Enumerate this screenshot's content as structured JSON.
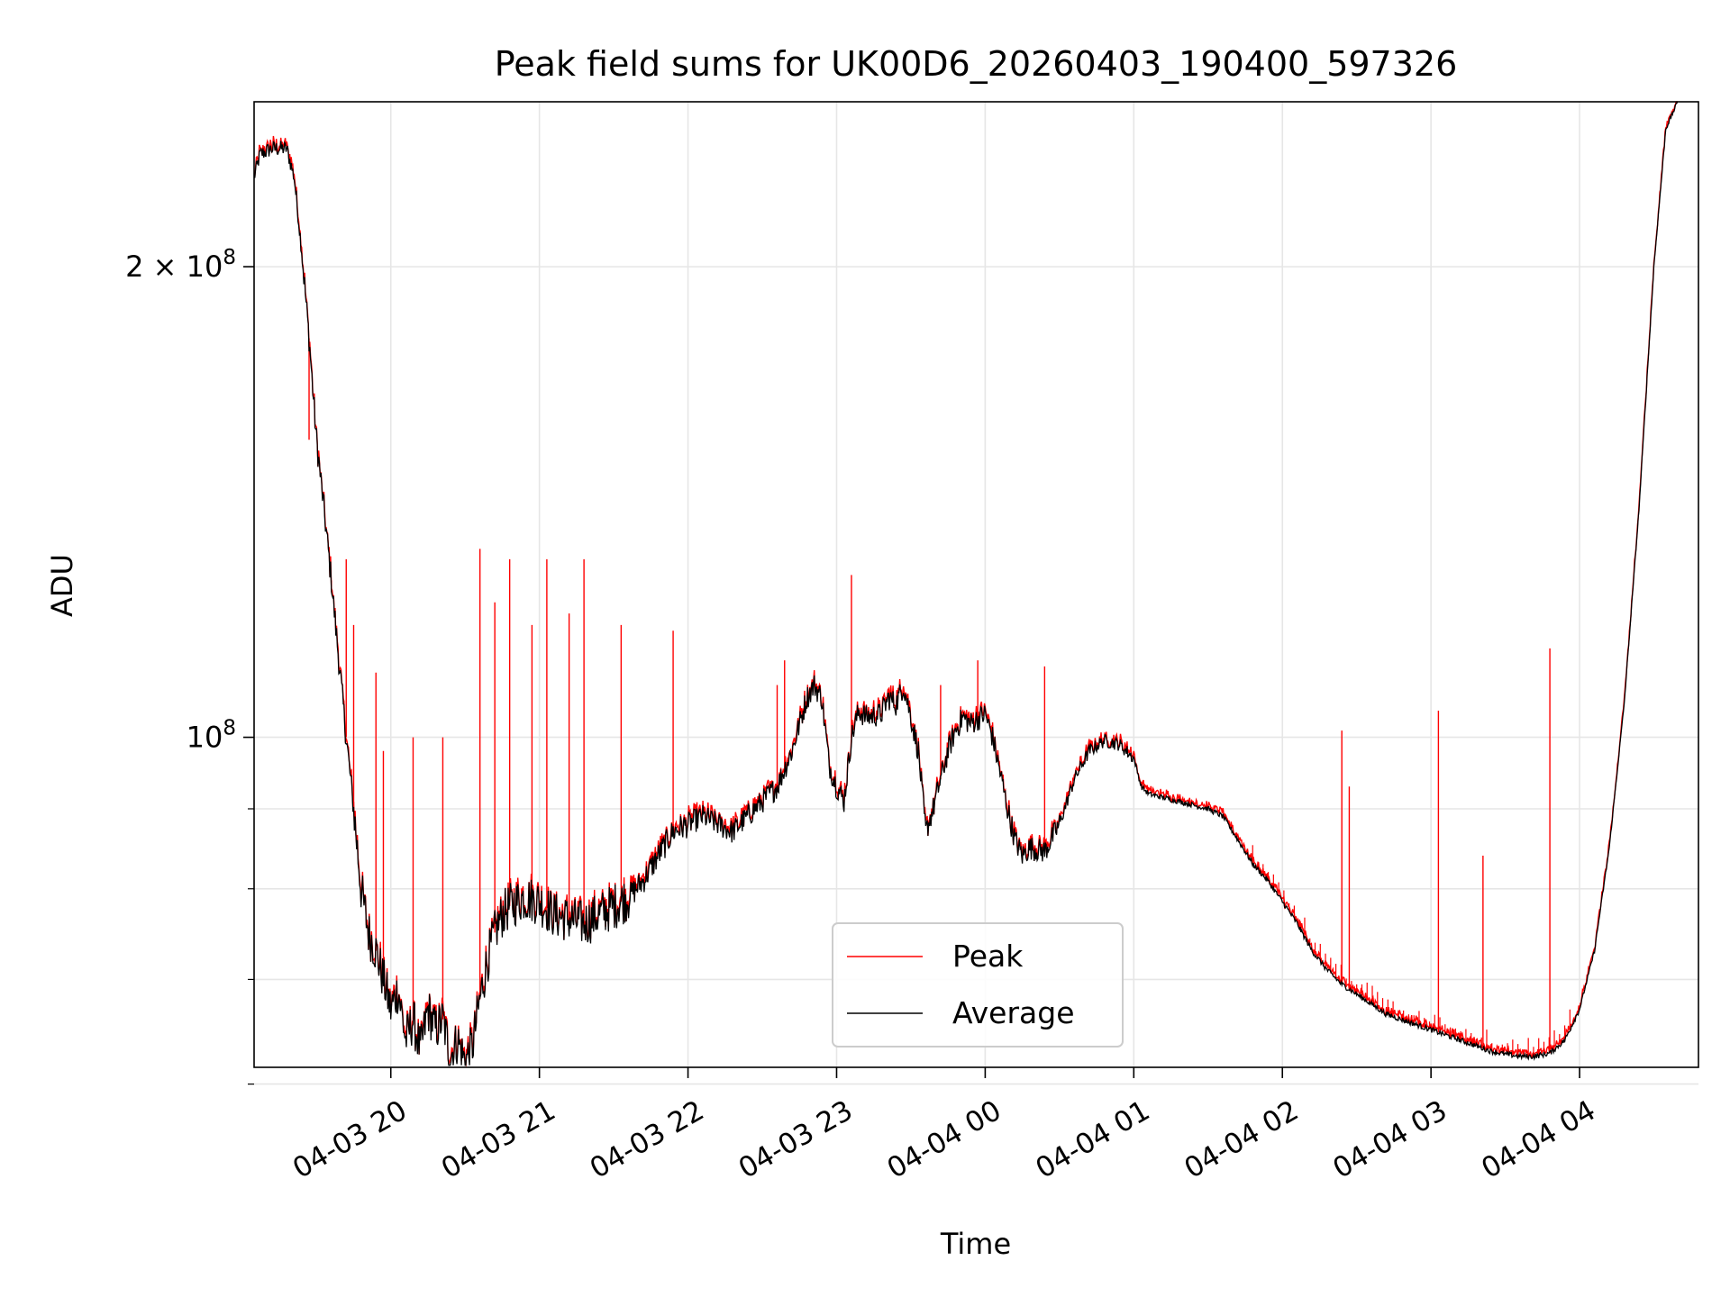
{
  "chart_data": {
    "type": "line",
    "title": "Peak field sums for UK00D6_20260403_190400_597326",
    "xlabel": "Time",
    "ylabel": "ADU",
    "yscale": "log",
    "xlim_hours": [
      19.08,
      28.8
    ],
    "ylim": [
      61500000,
      255000000
    ],
    "x_ticks": [
      {
        "h": 20,
        "label": "04-03 20"
      },
      {
        "h": 21,
        "label": "04-03 21"
      },
      {
        "h": 22,
        "label": "04-03 22"
      },
      {
        "h": 23,
        "label": "04-03 23"
      },
      {
        "h": 24,
        "label": "04-04 00"
      },
      {
        "h": 25,
        "label": "04-04 01"
      },
      {
        "h": 26,
        "label": "04-04 02"
      },
      {
        "h": 27,
        "label": "04-04 03"
      },
      {
        "h": 28,
        "label": "04-04 04"
      }
    ],
    "y_major_ticks": [
      {
        "value": 100000000,
        "base": "10",
        "exp": "8",
        "mult": ""
      },
      {
        "value": 200000000,
        "base": "10",
        "exp": "8",
        "mult": "2 × "
      }
    ],
    "y_minor_gridlines": [
      60000000,
      70000000,
      80000000,
      90000000
    ],
    "grid": true,
    "legend": {
      "placement": "lower-center",
      "entries": [
        {
          "name": "Peak",
          "color": "#ff0000"
        },
        {
          "name": "Average",
          "color": "#000000"
        }
      ]
    },
    "series": [
      {
        "name": "Average",
        "color": "#000000",
        "points": [
          [
            19.08,
            228000000
          ],
          [
            19.12,
            236000000
          ],
          [
            19.2,
            238000000
          ],
          [
            19.3,
            238000000
          ],
          [
            19.35,
            228000000
          ],
          [
            19.4,
            205000000
          ],
          [
            19.45,
            180000000
          ],
          [
            19.5,
            155000000
          ],
          [
            19.55,
            140000000
          ],
          [
            19.6,
            126000000
          ],
          [
            19.65,
            112000000
          ],
          [
            19.7,
            100000000
          ],
          [
            19.75,
            90000000
          ],
          [
            19.8,
            80000000
          ],
          [
            19.85,
            75000000
          ],
          [
            19.9,
            73000000
          ],
          [
            19.95,
            70000000
          ],
          [
            20.0,
            67000000
          ],
          [
            20.05,
            69000000
          ],
          [
            20.1,
            64000000
          ],
          [
            20.15,
            66000000
          ],
          [
            20.2,
            63000000
          ],
          [
            20.25,
            67000000
          ],
          [
            20.3,
            65000000
          ],
          [
            20.35,
            66000000
          ],
          [
            20.4,
            62500000
          ],
          [
            20.45,
            64000000
          ],
          [
            20.5,
            62000000
          ],
          [
            20.55,
            63500000
          ],
          [
            20.6,
            68000000
          ],
          [
            20.65,
            72000000
          ],
          [
            20.7,
            75000000
          ],
          [
            20.75,
            77000000
          ],
          [
            20.8,
            78000000
          ],
          [
            20.9,
            79000000
          ],
          [
            21.0,
            78500000
          ],
          [
            21.1,
            77000000
          ],
          [
            21.2,
            76500000
          ],
          [
            21.3,
            76000000
          ],
          [
            21.4,
            77000000
          ],
          [
            21.5,
            78000000
          ],
          [
            21.6,
            79000000
          ],
          [
            21.7,
            81000000
          ],
          [
            21.8,
            84000000
          ],
          [
            21.9,
            87000000
          ],
          [
            22.0,
            88000000
          ],
          [
            22.1,
            89000000
          ],
          [
            22.2,
            88000000
          ],
          [
            22.3,
            87000000
          ],
          [
            22.4,
            89000000
          ],
          [
            22.5,
            91000000
          ],
          [
            22.6,
            93000000
          ],
          [
            22.7,
            98000000
          ],
          [
            22.8,
            106000000
          ],
          [
            22.85,
            108000000
          ],
          [
            22.9,
            106000000
          ],
          [
            22.95,
            96000000
          ],
          [
            23.0,
            93000000
          ],
          [
            23.05,
            91000000
          ],
          [
            23.1,
            100000000
          ],
          [
            23.15,
            104000000
          ],
          [
            23.2,
            103000000
          ],
          [
            23.3,
            103500000
          ],
          [
            23.35,
            106000000
          ],
          [
            23.4,
            105000000
          ],
          [
            23.45,
            108000000
          ],
          [
            23.5,
            103000000
          ],
          [
            23.55,
            98000000
          ],
          [
            23.6,
            87000000
          ],
          [
            23.65,
            90000000
          ],
          [
            23.7,
            94000000
          ],
          [
            23.75,
            98000000
          ],
          [
            23.8,
            101000000
          ],
          [
            23.85,
            103000000
          ],
          [
            23.9,
            102000000
          ],
          [
            24.0,
            103500000
          ],
          [
            24.05,
            100000000
          ],
          [
            24.1,
            95000000
          ],
          [
            24.15,
            90000000
          ],
          [
            24.2,
            86000000
          ],
          [
            24.25,
            84000000
          ],
          [
            24.3,
            85000000
          ],
          [
            24.4,
            84500000
          ],
          [
            24.5,
            88000000
          ],
          [
            24.6,
            94000000
          ],
          [
            24.7,
            98000000
          ],
          [
            24.8,
            99500000
          ],
          [
            24.9,
            99000000
          ],
          [
            25.0,
            97000000
          ],
          [
            25.05,
            93000000
          ],
          [
            25.1,
            92000000
          ],
          [
            25.2,
            91500000
          ],
          [
            25.3,
            91000000
          ],
          [
            25.4,
            90500000
          ],
          [
            25.5,
            90000000
          ],
          [
            25.6,
            89000000
          ],
          [
            25.7,
            86000000
          ],
          [
            25.8,
            83000000
          ],
          [
            25.9,
            81000000
          ],
          [
            26.0,
            78500000
          ],
          [
            26.1,
            76000000
          ],
          [
            26.2,
            73000000
          ],
          [
            26.3,
            71000000
          ],
          [
            26.4,
            69500000
          ],
          [
            26.5,
            68500000
          ],
          [
            26.6,
            67500000
          ],
          [
            26.7,
            66500000
          ],
          [
            26.8,
            66000000
          ],
          [
            26.9,
            65500000
          ],
          [
            27.0,
            65000000
          ],
          [
            27.1,
            64500000
          ],
          [
            27.2,
            64000000
          ],
          [
            27.3,
            63500000
          ],
          [
            27.4,
            63000000
          ],
          [
            27.5,
            62700000
          ],
          [
            27.6,
            62500000
          ],
          [
            27.7,
            62500000
          ],
          [
            27.8,
            62800000
          ],
          [
            27.9,
            64000000
          ],
          [
            28.0,
            67000000
          ],
          [
            28.1,
            73000000
          ],
          [
            28.2,
            85000000
          ],
          [
            28.3,
            105000000
          ],
          [
            28.4,
            140000000
          ],
          [
            28.5,
            200000000
          ],
          [
            28.58,
            245000000
          ],
          [
            28.66,
            255000000
          ]
        ]
      },
      {
        "name": "Peak",
        "color": "#ff0000",
        "note": "Tracks Average with narrow vertical spikes",
        "spikes": [
          [
            19.45,
            155000000
          ],
          [
            19.6,
            125000000
          ],
          [
            19.7,
            130000000
          ],
          [
            19.75,
            118000000
          ],
          [
            19.9,
            110000000
          ],
          [
            19.95,
            98000000
          ],
          [
            20.15,
            100000000
          ],
          [
            20.35,
            100000000
          ],
          [
            20.6,
            132000000
          ],
          [
            20.7,
            122000000
          ],
          [
            20.8,
            130000000
          ],
          [
            20.95,
            118000000
          ],
          [
            21.05,
            130000000
          ],
          [
            21.2,
            120000000
          ],
          [
            21.3,
            130000000
          ],
          [
            21.55,
            118000000
          ],
          [
            21.9,
            117000000
          ],
          [
            22.6,
            108000000
          ],
          [
            22.65,
            112000000
          ],
          [
            23.1,
            127000000
          ],
          [
            23.7,
            108000000
          ],
          [
            23.95,
            112000000
          ],
          [
            24.4,
            111000000
          ],
          [
            26.4,
            101000000
          ],
          [
            26.45,
            93000000
          ],
          [
            27.05,
            104000000
          ],
          [
            27.35,
            84000000
          ],
          [
            27.8,
            114000000
          ]
        ]
      }
    ]
  }
}
